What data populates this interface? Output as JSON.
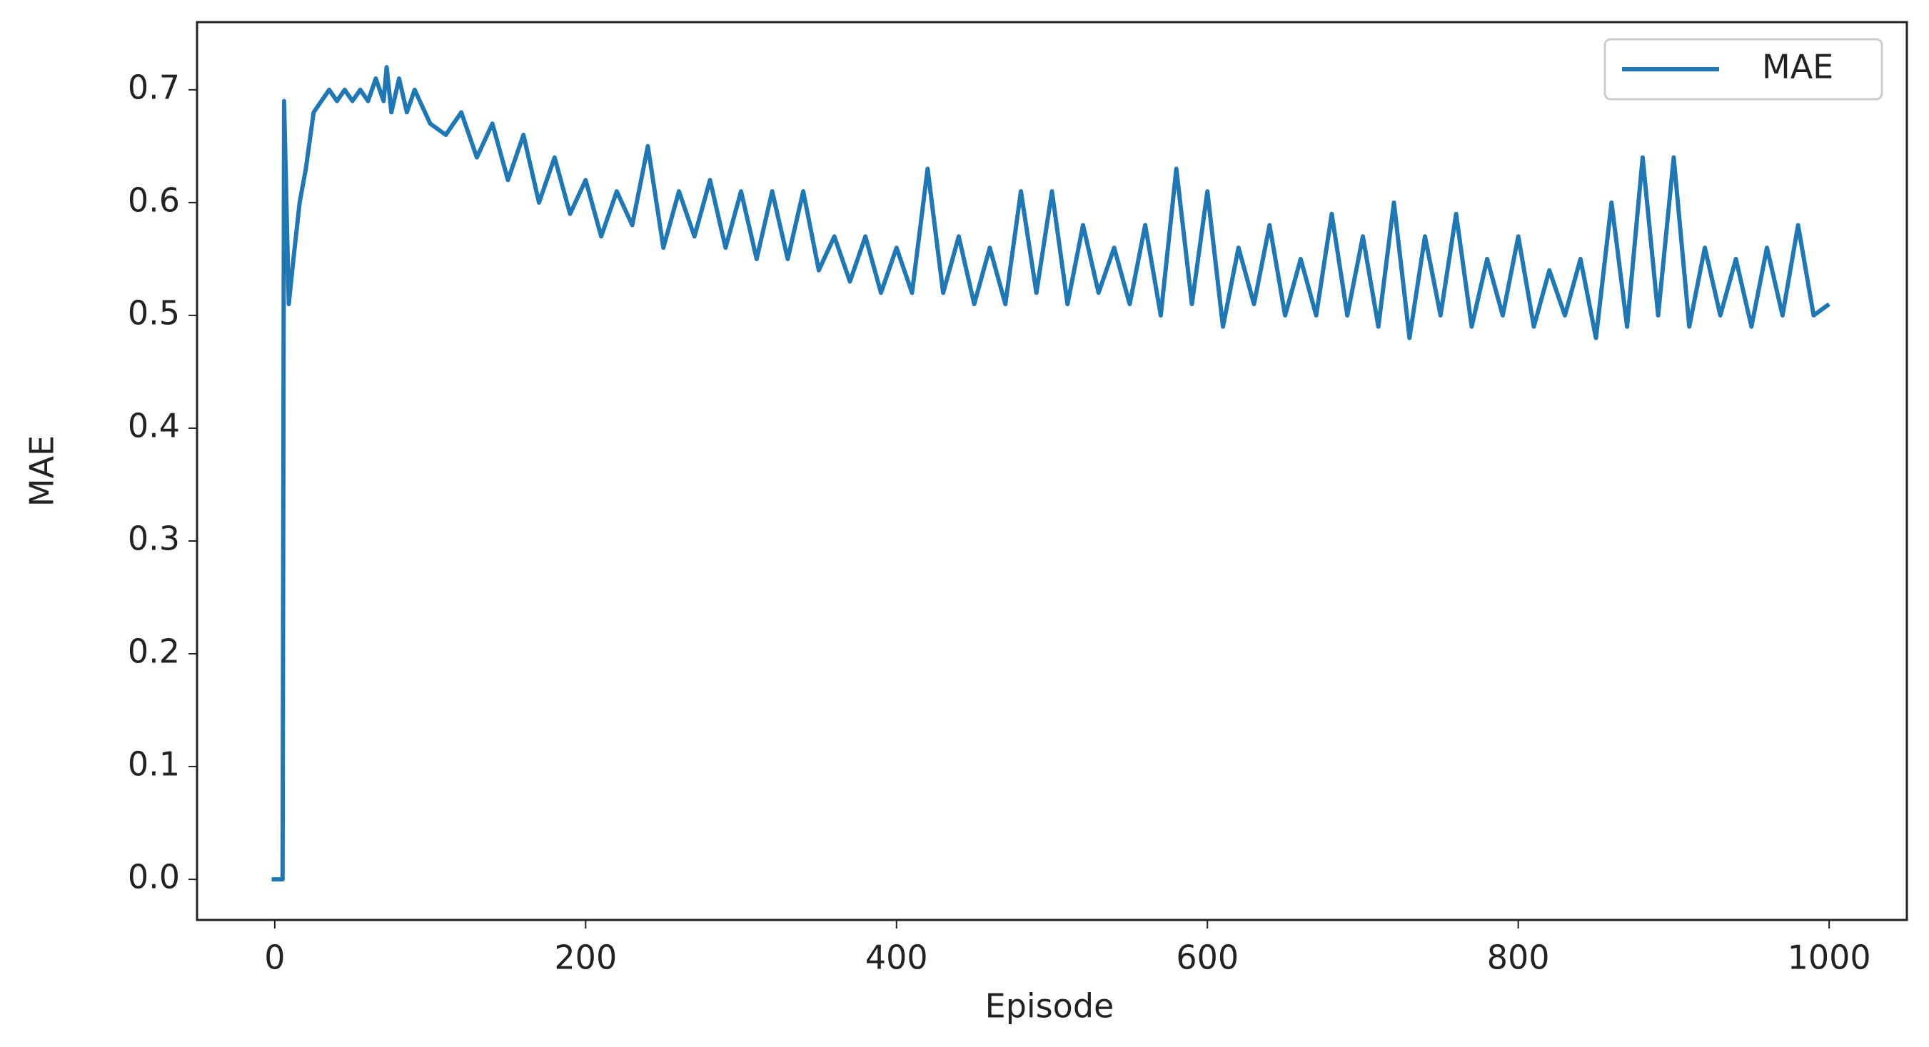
{
  "chart_data": {
    "type": "line",
    "xlabel": "Episode",
    "ylabel": "MAE",
    "x": [
      -2,
      5,
      6,
      9,
      12,
      16,
      20,
      25,
      30,
      35,
      40,
      45,
      50,
      55,
      60,
      65,
      70,
      72,
      75,
      80,
      85,
      90,
      100,
      110,
      120,
      130,
      140,
      150,
      160,
      170,
      180,
      190,
      200,
      210,
      220,
      230,
      240,
      250,
      260,
      270,
      280,
      290,
      300,
      310,
      320,
      330,
      340,
      350,
      360,
      370,
      380,
      390,
      400,
      410,
      420,
      430,
      440,
      450,
      460,
      470,
      480,
      490,
      500,
      510,
      520,
      530,
      540,
      550,
      560,
      570,
      580,
      590,
      600,
      610,
      620,
      630,
      640,
      650,
      660,
      670,
      680,
      690,
      700,
      710,
      720,
      730,
      740,
      750,
      760,
      770,
      780,
      790,
      800,
      810,
      820,
      830,
      840,
      850,
      860,
      870,
      880,
      890,
      900,
      910,
      920,
      930,
      940,
      950,
      960,
      970,
      980,
      990,
      1000
    ],
    "series": [
      {
        "name": "MAE",
        "color": "#1f77b4",
        "values": [
          0.0,
          0.0,
          0.69,
          0.51,
          0.55,
          0.6,
          0.63,
          0.68,
          0.69,
          0.7,
          0.69,
          0.7,
          0.69,
          0.7,
          0.69,
          0.71,
          0.69,
          0.72,
          0.68,
          0.71,
          0.68,
          0.7,
          0.67,
          0.66,
          0.68,
          0.64,
          0.67,
          0.62,
          0.66,
          0.6,
          0.64,
          0.59,
          0.62,
          0.57,
          0.61,
          0.58,
          0.65,
          0.56,
          0.61,
          0.57,
          0.62,
          0.56,
          0.61,
          0.55,
          0.61,
          0.55,
          0.61,
          0.54,
          0.57,
          0.53,
          0.57,
          0.52,
          0.56,
          0.52,
          0.63,
          0.52,
          0.57,
          0.51,
          0.56,
          0.51,
          0.61,
          0.52,
          0.61,
          0.51,
          0.58,
          0.52,
          0.56,
          0.51,
          0.58,
          0.5,
          0.63,
          0.51,
          0.61,
          0.49,
          0.56,
          0.51,
          0.58,
          0.5,
          0.55,
          0.5,
          0.59,
          0.5,
          0.57,
          0.49,
          0.6,
          0.48,
          0.57,
          0.5,
          0.59,
          0.49,
          0.55,
          0.5,
          0.57,
          0.49,
          0.54,
          0.5,
          0.55,
          0.48,
          0.6,
          0.49,
          0.64,
          0.5,
          0.64,
          0.49,
          0.56,
          0.5,
          0.55,
          0.49,
          0.56,
          0.5,
          0.58,
          0.5,
          0.51
        ]
      }
    ],
    "xlim": [
      -50,
      1050
    ],
    "xticks": [
      0,
      200,
      400,
      600,
      800,
      1000
    ],
    "ylim": [
      -0.036,
      0.76
    ],
    "yticks": [
      {
        "value": 0,
        "label": "0.0"
      },
      0.1,
      0.2,
      0.3,
      0.4,
      0.5,
      0.6,
      0.7
    ],
    "legend": "upper right"
  }
}
